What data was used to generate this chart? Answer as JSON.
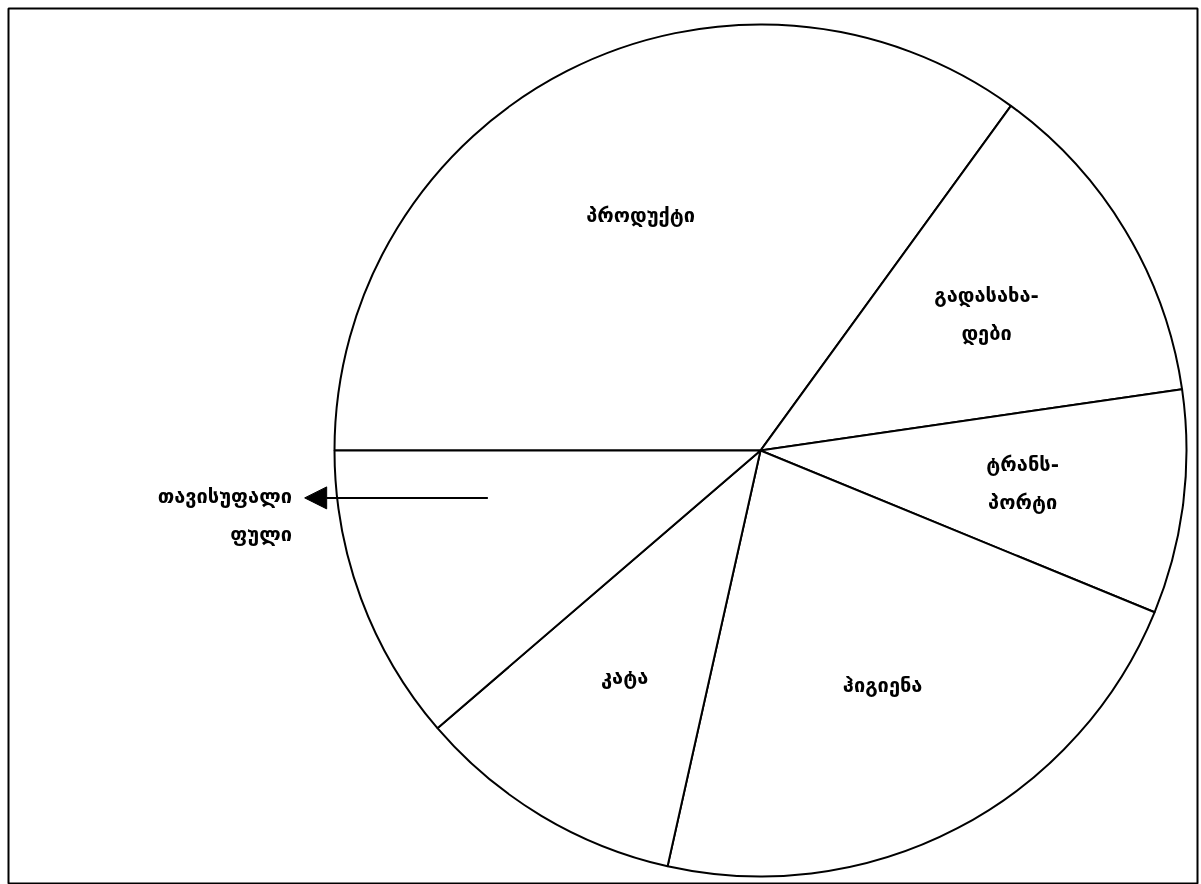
{
  "chart_data": {
    "type": "pie",
    "categories": [
      "პროდუქტი",
      "გადასახა-\nდები",
      "ტრანს-\nპორტი",
      "ჰიგიენა",
      "კატა",
      "თავისუფალი\nფული"
    ],
    "values": [
      35,
      12.7,
      8.5,
      22.3,
      10.2,
      11.3
    ],
    "colors": [
      "#ffffff",
      "#ffffff",
      "#ffffff",
      "#ffffff",
      "#ffffff",
      "#ffffff"
    ]
  }
}
